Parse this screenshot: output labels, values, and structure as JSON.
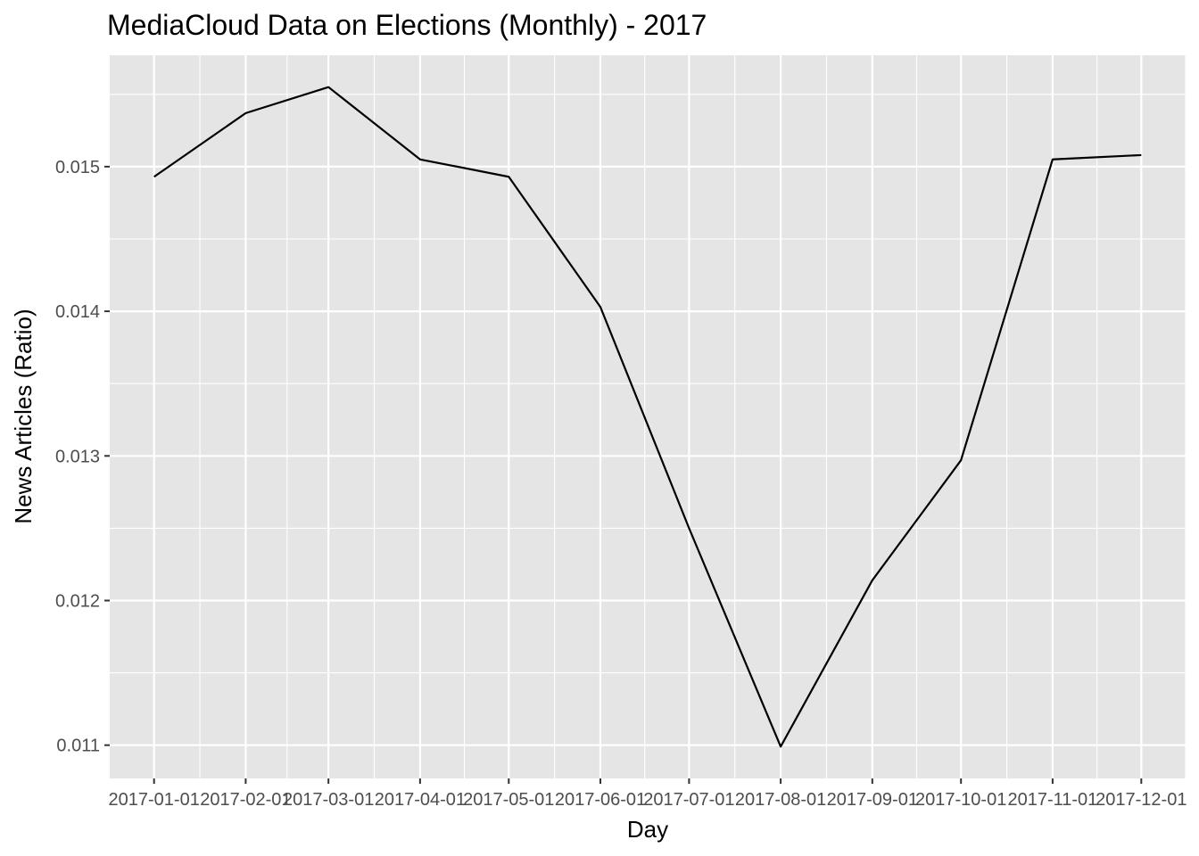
{
  "chart_data": {
    "type": "line",
    "title": "MediaCloud Data on Elections (Monthly) - 2017",
    "xlabel": "Day",
    "ylabel": "News Articles (Ratio)",
    "x": [
      "2017-01-01",
      "2017-02-01",
      "2017-03-01",
      "2017-04-01",
      "2017-05-01",
      "2017-06-01",
      "2017-07-01",
      "2017-08-01",
      "2017-09-01",
      "2017-10-01",
      "2017-11-01",
      "2017-12-01"
    ],
    "series": [
      {
        "values": [
          0.01493,
          0.01537,
          0.01555,
          0.01505,
          0.01493,
          0.01403,
          0.0125,
          0.01099,
          0.01214,
          0.01297,
          0.01505,
          0.01508
        ]
      }
    ],
    "yticks": [
      0.011,
      0.012,
      0.013,
      0.014,
      0.015
    ],
    "ytick_labels": [
      "0.011",
      "0.012",
      "0.013",
      "0.014",
      "0.015"
    ],
    "ylim": [
      0.01077,
      0.01577
    ],
    "xlim": [
      "2016-12-17",
      "2017-12-16"
    ],
    "grid": true,
    "colors": {
      "panel": "#e5e5e5",
      "grid": "#ffffff",
      "line": "#000000",
      "tick_text": "#4d4d4d"
    }
  }
}
